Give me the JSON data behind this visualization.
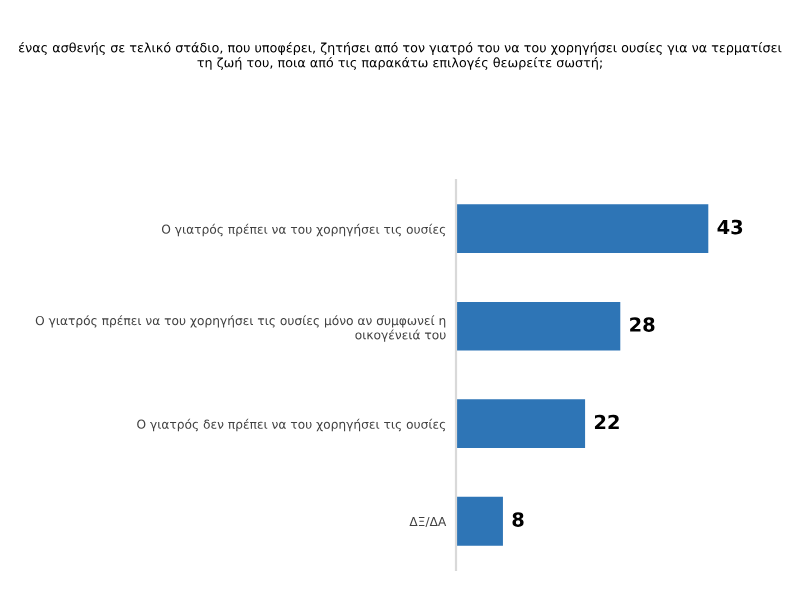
{
  "chart_data": {
    "type": "bar",
    "orientation": "horizontal",
    "title": "ένας ασθενής σε τελικό στάδιο, που υποφέρει, ζητήσει από τον γιατρό του να του χορηγήσει ουσίες για να τερματίσει\nτη ζωή του, ποια από τις παρακάτω επιλογές θεωρείτε σωστή;",
    "categories": [
      "Ο γιατρός πρέπει να του χορηγήσει τις ουσίες",
      "Ο γιατρός πρέπει να του χορηγήσει τις ουσίες μόνο αν συμφωνεί η\nοικογένειά του",
      "Ο γιατρός δεν πρέπει να του χορηγήσει τις ουσίες",
      "ΔΞ/ΔΑ"
    ],
    "values": [
      43,
      28,
      22,
      8
    ],
    "color": "#2e75b6",
    "data_labels": true,
    "grid": false,
    "legend": false
  }
}
